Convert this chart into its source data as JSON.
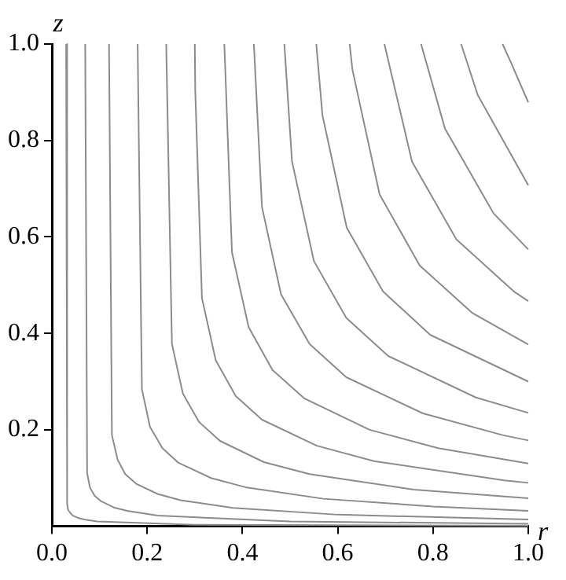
{
  "chart_data": {
    "type": "line",
    "xlabel": "r",
    "ylabel": "z",
    "xlim": [
      0,
      1
    ],
    "ylim": [
      0,
      1
    ],
    "xticks": [
      {
        "value": 0,
        "label": "0.0"
      },
      {
        "value": 0.2,
        "label": "0.2"
      },
      {
        "value": 0.4,
        "label": "0.4"
      },
      {
        "value": 0.6,
        "label": "0.6"
      },
      {
        "value": 0.8,
        "label": "0.8"
      },
      {
        "value": 1,
        "label": "1.0"
      }
    ],
    "yticks": [
      0.2,
      0.4,
      0.6,
      0.8,
      {
        "value": 1,
        "label": "1.0"
      }
    ],
    "grid": false,
    "legend": false,
    "marker": "none",
    "line_style": "solid",
    "series": [
      {
        "color": "#8c8c8c",
        "x": [
          0.03,
          0.032,
          0.034,
          0.039,
          0.044,
          0.056,
          0.068,
          0.095,
          0.3,
          1
        ],
        "values": [
          1,
          0.047,
          0.034,
          0.027,
          0.022,
          0.017,
          0.014,
          0.01,
          0.003,
          0.001
        ]
      },
      {
        "color": "#8c8c8c",
        "x": [
          0.07,
          0.074,
          0.08,
          0.09,
          0.103,
          0.13,
          0.158,
          0.222,
          0.5,
          1
        ],
        "values": [
          1,
          0.11,
          0.08,
          0.063,
          0.052,
          0.039,
          0.032,
          0.022,
          0.01,
          0.005
        ]
      },
      {
        "color": "#8c8c8c",
        "x": [
          0.12,
          0.126,
          0.138,
          0.154,
          0.177,
          0.222,
          0.27,
          0.38,
          0.6,
          1
        ],
        "values": [
          1,
          0.189,
          0.138,
          0.108,
          0.088,
          0.067,
          0.054,
          0.038,
          0.024,
          0.014
        ]
      },
      {
        "color": "#8c8c8c",
        "x": [
          0.18,
          0.189,
          0.206,
          0.232,
          0.265,
          0.334,
          0.406,
          0.57,
          0.8,
          1
        ],
        "values": [
          1,
          0.284,
          0.206,
          0.162,
          0.132,
          0.1,
          0.081,
          0.057,
          0.041,
          0.032
        ]
      },
      {
        "color": "#8c8c8c",
        "x": [
          0.24,
          0.252,
          0.275,
          0.309,
          0.353,
          0.445,
          0.541,
          0.76,
          1
        ],
        "values": [
          1,
          0.378,
          0.275,
          0.216,
          0.177,
          0.133,
          0.108,
          0.076,
          0.058
        ]
      },
      {
        "color": "#8c8c8c",
        "x": [
          0.3,
          0.301,
          0.315,
          0.344,
          0.386,
          0.441,
          0.556,
          0.676,
          0.95,
          1
        ],
        "values": [
          1,
          0.902,
          0.473,
          0.344,
          0.27,
          0.221,
          0.167,
          0.135,
          0.095,
          0.09
        ]
      },
      {
        "color": "#8c8c8c",
        "x": [
          0.362,
          0.378,
          0.413,
          0.463,
          0.53,
          0.667,
          0.811,
          1
        ],
        "values": [
          1,
          0.568,
          0.413,
          0.324,
          0.265,
          0.2,
          0.162,
          0.13
        ]
      },
      {
        "color": "#8c8c8c",
        "x": [
          0.424,
          0.441,
          0.481,
          0.541,
          0.618,
          0.779,
          0.946,
          1
        ],
        "values": [
          1,
          0.662,
          0.481,
          0.378,
          0.309,
          0.234,
          0.189,
          0.178
        ]
      },
      {
        "color": "#8c8c8c",
        "x": [
          0.488,
          0.504,
          0.55,
          0.618,
          0.706,
          0.89,
          1
        ],
        "values": [
          1,
          0.757,
          0.55,
          0.432,
          0.353,
          0.267,
          0.235
        ]
      },
      {
        "color": "#8c8c8c",
        "x": [
          0.555,
          0.568,
          0.619,
          0.695,
          0.794,
          1
        ],
        "values": [
          1,
          0.852,
          0.619,
          0.487,
          0.397,
          0.3
        ]
      },
      {
        "color": "#8c8c8c",
        "x": [
          0.625,
          0.631,
          0.688,
          0.772,
          0.883,
          1
        ],
        "values": [
          1,
          0.946,
          0.688,
          0.541,
          0.442,
          0.377
        ]
      },
      {
        "color": "#8c8c8c",
        "x": [
          0.698,
          0.756,
          0.849,
          0.971,
          1
        ],
        "values": [
          1,
          0.756,
          0.595,
          0.486,
          0.467
        ]
      },
      {
        "color": "#8c8c8c",
        "x": [
          0.775,
          0.825,
          0.927,
          1
        ],
        "values": [
          1,
          0.825,
          0.649,
          0.574
        ]
      },
      {
        "color": "#8c8c8c",
        "x": [
          0.859,
          0.894,
          1
        ],
        "values": [
          1,
          0.894,
          0.707
        ]
      },
      {
        "color": "#8c8c8c",
        "x": [
          0.946,
          0.963,
          1
        ],
        "values": [
          1,
          0.963,
          0.879
        ]
      }
    ]
  }
}
